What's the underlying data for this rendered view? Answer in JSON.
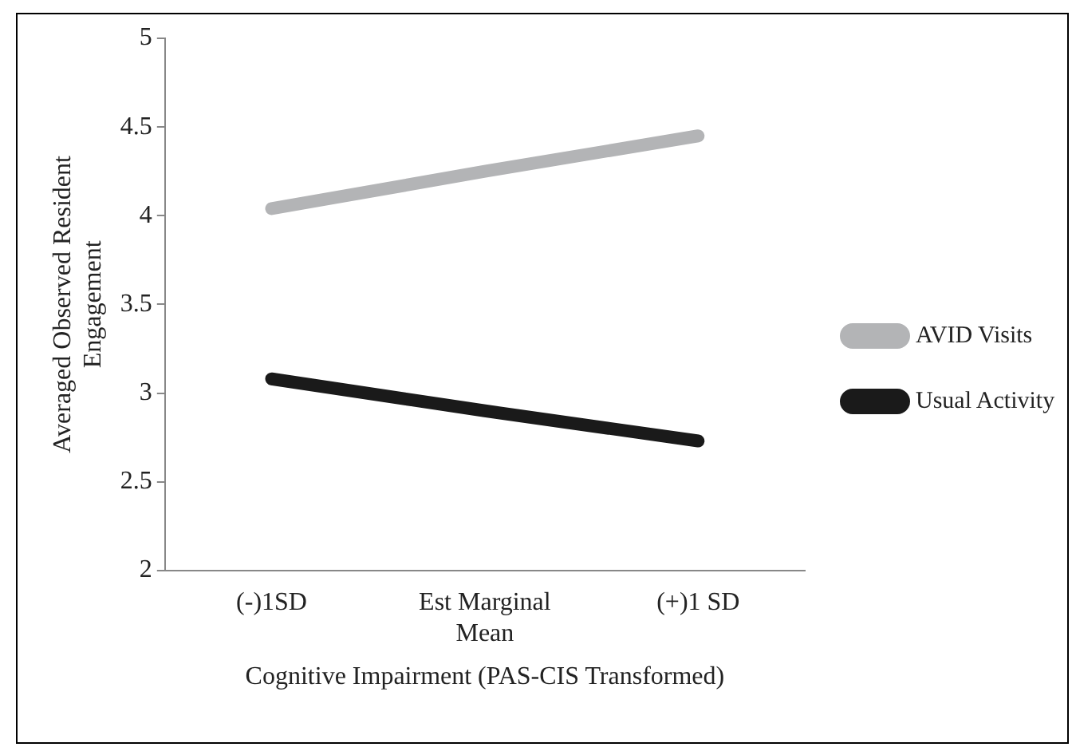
{
  "chart_data": {
    "type": "line",
    "xlabel": "Cognitive Impairment (PAS-CIS Transformed)",
    "ylabel": "Averaged Observed Resident Engagement",
    "categories": [
      "(-)1SD",
      "Est Marginal Mean",
      "(+)1 SD"
    ],
    "series": [
      {
        "name": "AVID Visits",
        "color": "#b3b4b6",
        "values": [
          4.04,
          4.25,
          4.45
        ]
      },
      {
        "name": "Usual Activity",
        "color": "#1a1a1a",
        "values": [
          3.08,
          2.9,
          2.73
        ]
      }
    ],
    "ylim": [
      2,
      5
    ],
    "yticks": [
      2,
      2.5,
      3,
      3.5,
      4,
      4.5,
      5
    ],
    "grid": false,
    "legend": "right",
    "marker": "none",
    "line_style": "solid"
  }
}
